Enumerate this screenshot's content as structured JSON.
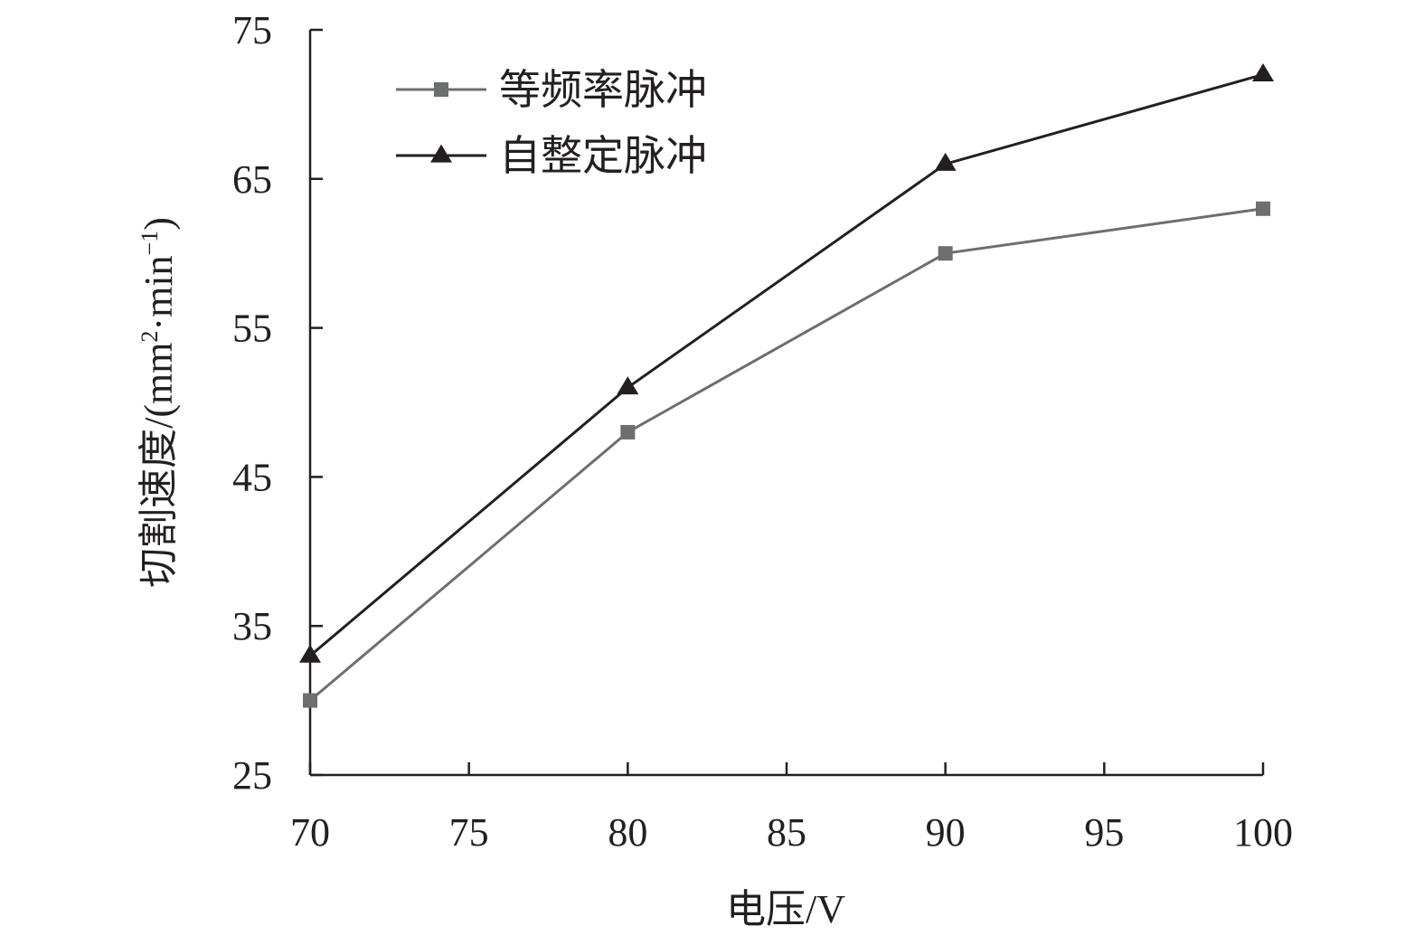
{
  "chart_data": {
    "type": "line",
    "title": "",
    "xlabel": "电压/V",
    "ylabel": "切割速度/(mm²·min⁻¹)",
    "ylabel_parts": {
      "main": "切割速度/(mm",
      "sup1": "2",
      "mid": "·min",
      "sup2": "−1",
      "close": ")"
    },
    "x": [
      70,
      80,
      90,
      100
    ],
    "xlim": [
      70,
      100
    ],
    "ylim": [
      25,
      75
    ],
    "xticks": [
      70,
      75,
      80,
      85,
      90,
      95,
      100
    ],
    "yticks": [
      25,
      35,
      45,
      55,
      65,
      75
    ],
    "grid": false,
    "legend_position": "top-left",
    "series": [
      {
        "name": "等频率脉冲",
        "marker": "square",
        "color": "#6d6e70",
        "values": [
          30,
          48,
          60,
          63
        ]
      },
      {
        "name": "自整定脉冲",
        "marker": "triangle",
        "color": "#231f20",
        "values": [
          33,
          51,
          66,
          72
        ]
      }
    ]
  }
}
